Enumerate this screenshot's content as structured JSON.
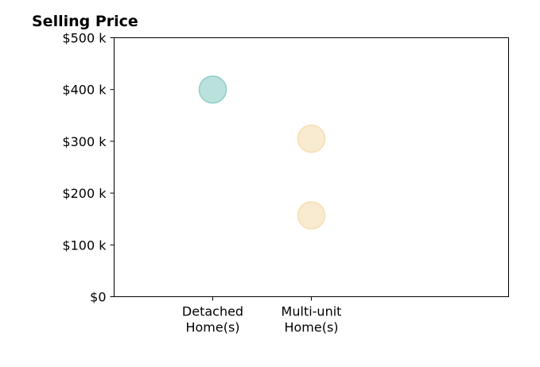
{
  "chart_data": {
    "type": "scatter",
    "title": "Selling Price",
    "xlabel": "",
    "ylabel": "",
    "categories": [
      [
        "Detached",
        "Home(s)"
      ],
      [
        "Multi-unit",
        "Home(s)"
      ]
    ],
    "y_ticks": [
      "$0",
      "$100 k",
      "$200 k",
      "$300 k",
      "$400 k",
      "$500 k"
    ],
    "y_tick_values": [
      0,
      100,
      200,
      300,
      400,
      500
    ],
    "ylim": [
      0,
      500
    ],
    "grid": false,
    "points": [
      {
        "category": 0,
        "value": 400,
        "color": "#8ecdc6"
      },
      {
        "category": 1,
        "value": 305,
        "color": "#f5deb0"
      },
      {
        "category": 1,
        "value": 157,
        "color": "#f5deb0"
      }
    ]
  }
}
